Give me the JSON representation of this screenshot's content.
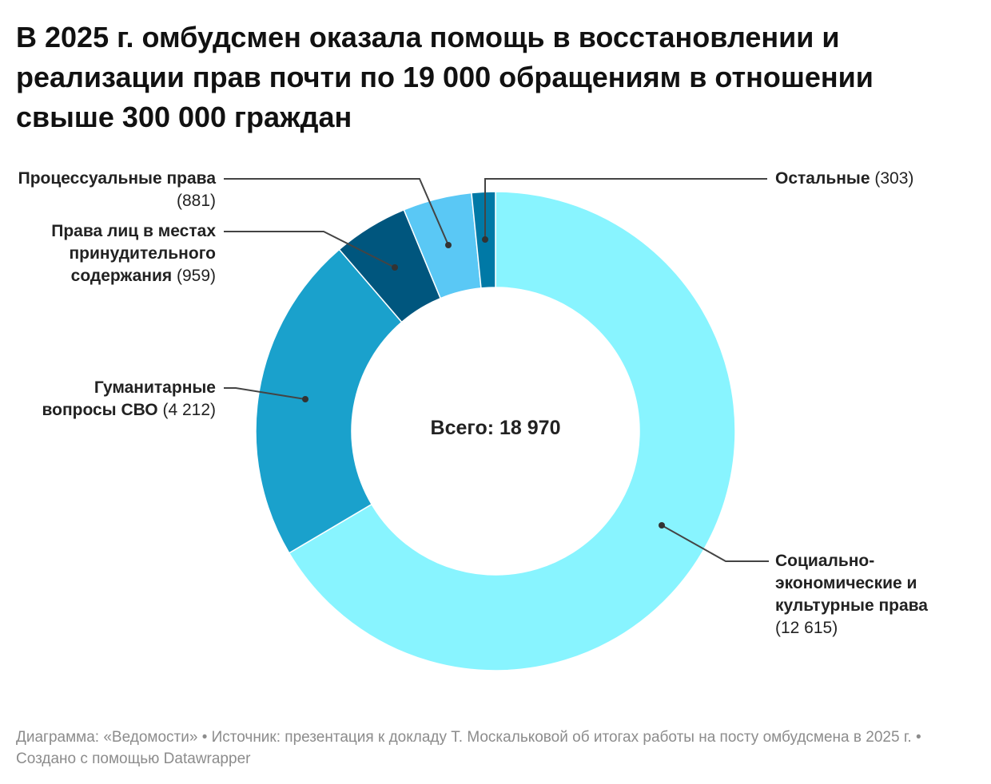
{
  "title": "В 2025 г. омбудсмен оказала помощь в восстановлении и реализации прав почти по 19 000 обращениям в отношении свыше 300 000 граждан",
  "footer": "Диаграмма: «Ведомости» • Источник: презентация к докладу Т. Москальковой об итогах работы на посту омбудсмена в 2025 г. • Создано с помощью Datawrapper",
  "chart_data": {
    "type": "pie",
    "variant": "donut",
    "center_label": "Всего: 18 970",
    "slices": [
      {
        "label": "Социально-экономические и культурные права",
        "value": 12615,
        "value_label": "(12 615)",
        "color": "#88f4ff"
      },
      {
        "label": "Гуманитарные вопросы СВО",
        "value": 4212,
        "value_label": "(4 212)",
        "color": "#1aa1cc"
      },
      {
        "label": "Права лиц в местах принудительного содержания",
        "value": 959,
        "value_label": "(959)",
        "color": "#00567e"
      },
      {
        "label": "Процессуальные права",
        "value": 881,
        "value_label": "(881)",
        "color": "#5ac8f5"
      },
      {
        "label": "Остальные",
        "value": 303,
        "value_label": "(303)",
        "color": "#0079a6"
      }
    ]
  }
}
